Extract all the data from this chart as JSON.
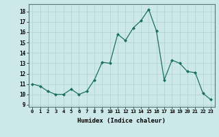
{
  "x": [
    0,
    1,
    2,
    3,
    4,
    5,
    6,
    7,
    8,
    9,
    10,
    11,
    12,
    13,
    14,
    15,
    16,
    17,
    18,
    19,
    20,
    21,
    22,
    23
  ],
  "y": [
    11.0,
    10.8,
    10.3,
    10.0,
    10.0,
    10.5,
    10.0,
    10.3,
    11.4,
    13.1,
    13.0,
    15.8,
    15.2,
    16.4,
    17.1,
    18.2,
    16.1,
    11.4,
    13.3,
    13.0,
    12.2,
    12.1,
    10.1,
    9.5
  ],
  "line_color": "#1a7060",
  "marker_color": "#1a7060",
  "bg_color": "#cce8e8",
  "grid_color": "#b0d0d0",
  "xlabel": "Humidex (Indice chaleur)",
  "ylabel_ticks": [
    9,
    10,
    11,
    12,
    13,
    14,
    15,
    16,
    17,
    18
  ],
  "ylim": [
    8.8,
    18.7
  ],
  "xlim": [
    -0.5,
    23.5
  ],
  "figsize": [
    3.2,
    2.0
  ],
  "dpi": 100
}
